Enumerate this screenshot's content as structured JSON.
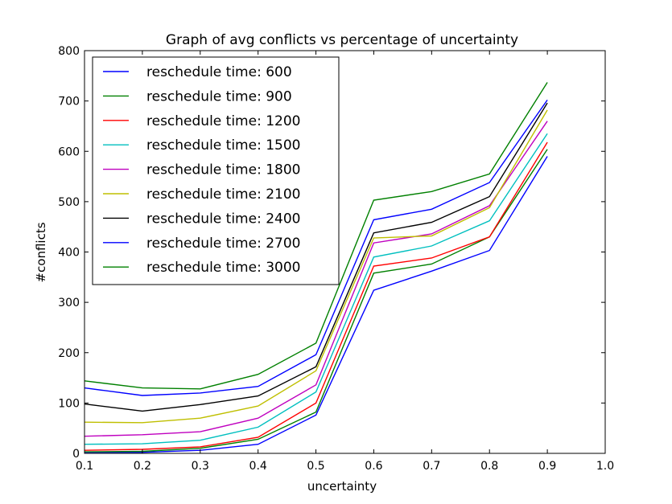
{
  "chart_data": {
    "type": "line",
    "title": "Graph of avg conflicts vs percentage of uncertainty",
    "xlabel": "uncertainty",
    "ylabel": "#conflicts",
    "xlim": [
      0.1,
      1.0
    ],
    "ylim": [
      0,
      800
    ],
    "xticks": [
      "0.1",
      "0.2",
      "0.3",
      "0.4",
      "0.5",
      "0.6",
      "0.7",
      "0.8",
      "0.9",
      "1.0"
    ],
    "yticks": [
      "0",
      "100",
      "200",
      "300",
      "400",
      "500",
      "600",
      "700",
      "800"
    ],
    "grid": false,
    "legend_position": "top-left",
    "x": [
      0.1,
      0.2,
      0.3,
      0.4,
      0.5,
      0.6,
      0.7,
      0.8,
      0.9
    ],
    "series": [
      {
        "name": "reschedule time: 600",
        "color": "#0000ff",
        "values": [
          2,
          2,
          6,
          18,
          76,
          324,
          362,
          403,
          590
        ]
      },
      {
        "name": "reschedule time: 900",
        "color": "#008000",
        "values": [
          3,
          4,
          10,
          28,
          82,
          358,
          376,
          430,
          604
        ]
      },
      {
        "name": "reschedule time: 1200",
        "color": "#ff0000",
        "values": [
          6,
          8,
          13,
          32,
          100,
          372,
          388,
          430,
          618
        ]
      },
      {
        "name": "reschedule time: 1500",
        "color": "#00bfbf",
        "values": [
          18,
          19,
          26,
          52,
          122,
          390,
          412,
          462,
          635
        ]
      },
      {
        "name": "reschedule time: 1800",
        "color": "#bf00bf",
        "values": [
          34,
          37,
          43,
          70,
          136,
          418,
          436,
          492,
          660
        ]
      },
      {
        "name": "reschedule time: 2100",
        "color": "#bfbf00",
        "values": [
          62,
          61,
          70,
          94,
          164,
          428,
          432,
          488,
          682
        ]
      },
      {
        "name": "reschedule time: 2400",
        "color": "#000000",
        "values": [
          98,
          84,
          97,
          114,
          172,
          438,
          459,
          510,
          696
        ]
      },
      {
        "name": "reschedule time: 2700",
        "color": "#0000ff",
        "values": [
          130,
          115,
          120,
          133,
          196,
          464,
          485,
          538,
          702
        ]
      },
      {
        "name": "reschedule time: 3000",
        "color": "#008000",
        "values": [
          144,
          130,
          128,
          157,
          219,
          503,
          520,
          555,
          737
        ]
      }
    ]
  }
}
